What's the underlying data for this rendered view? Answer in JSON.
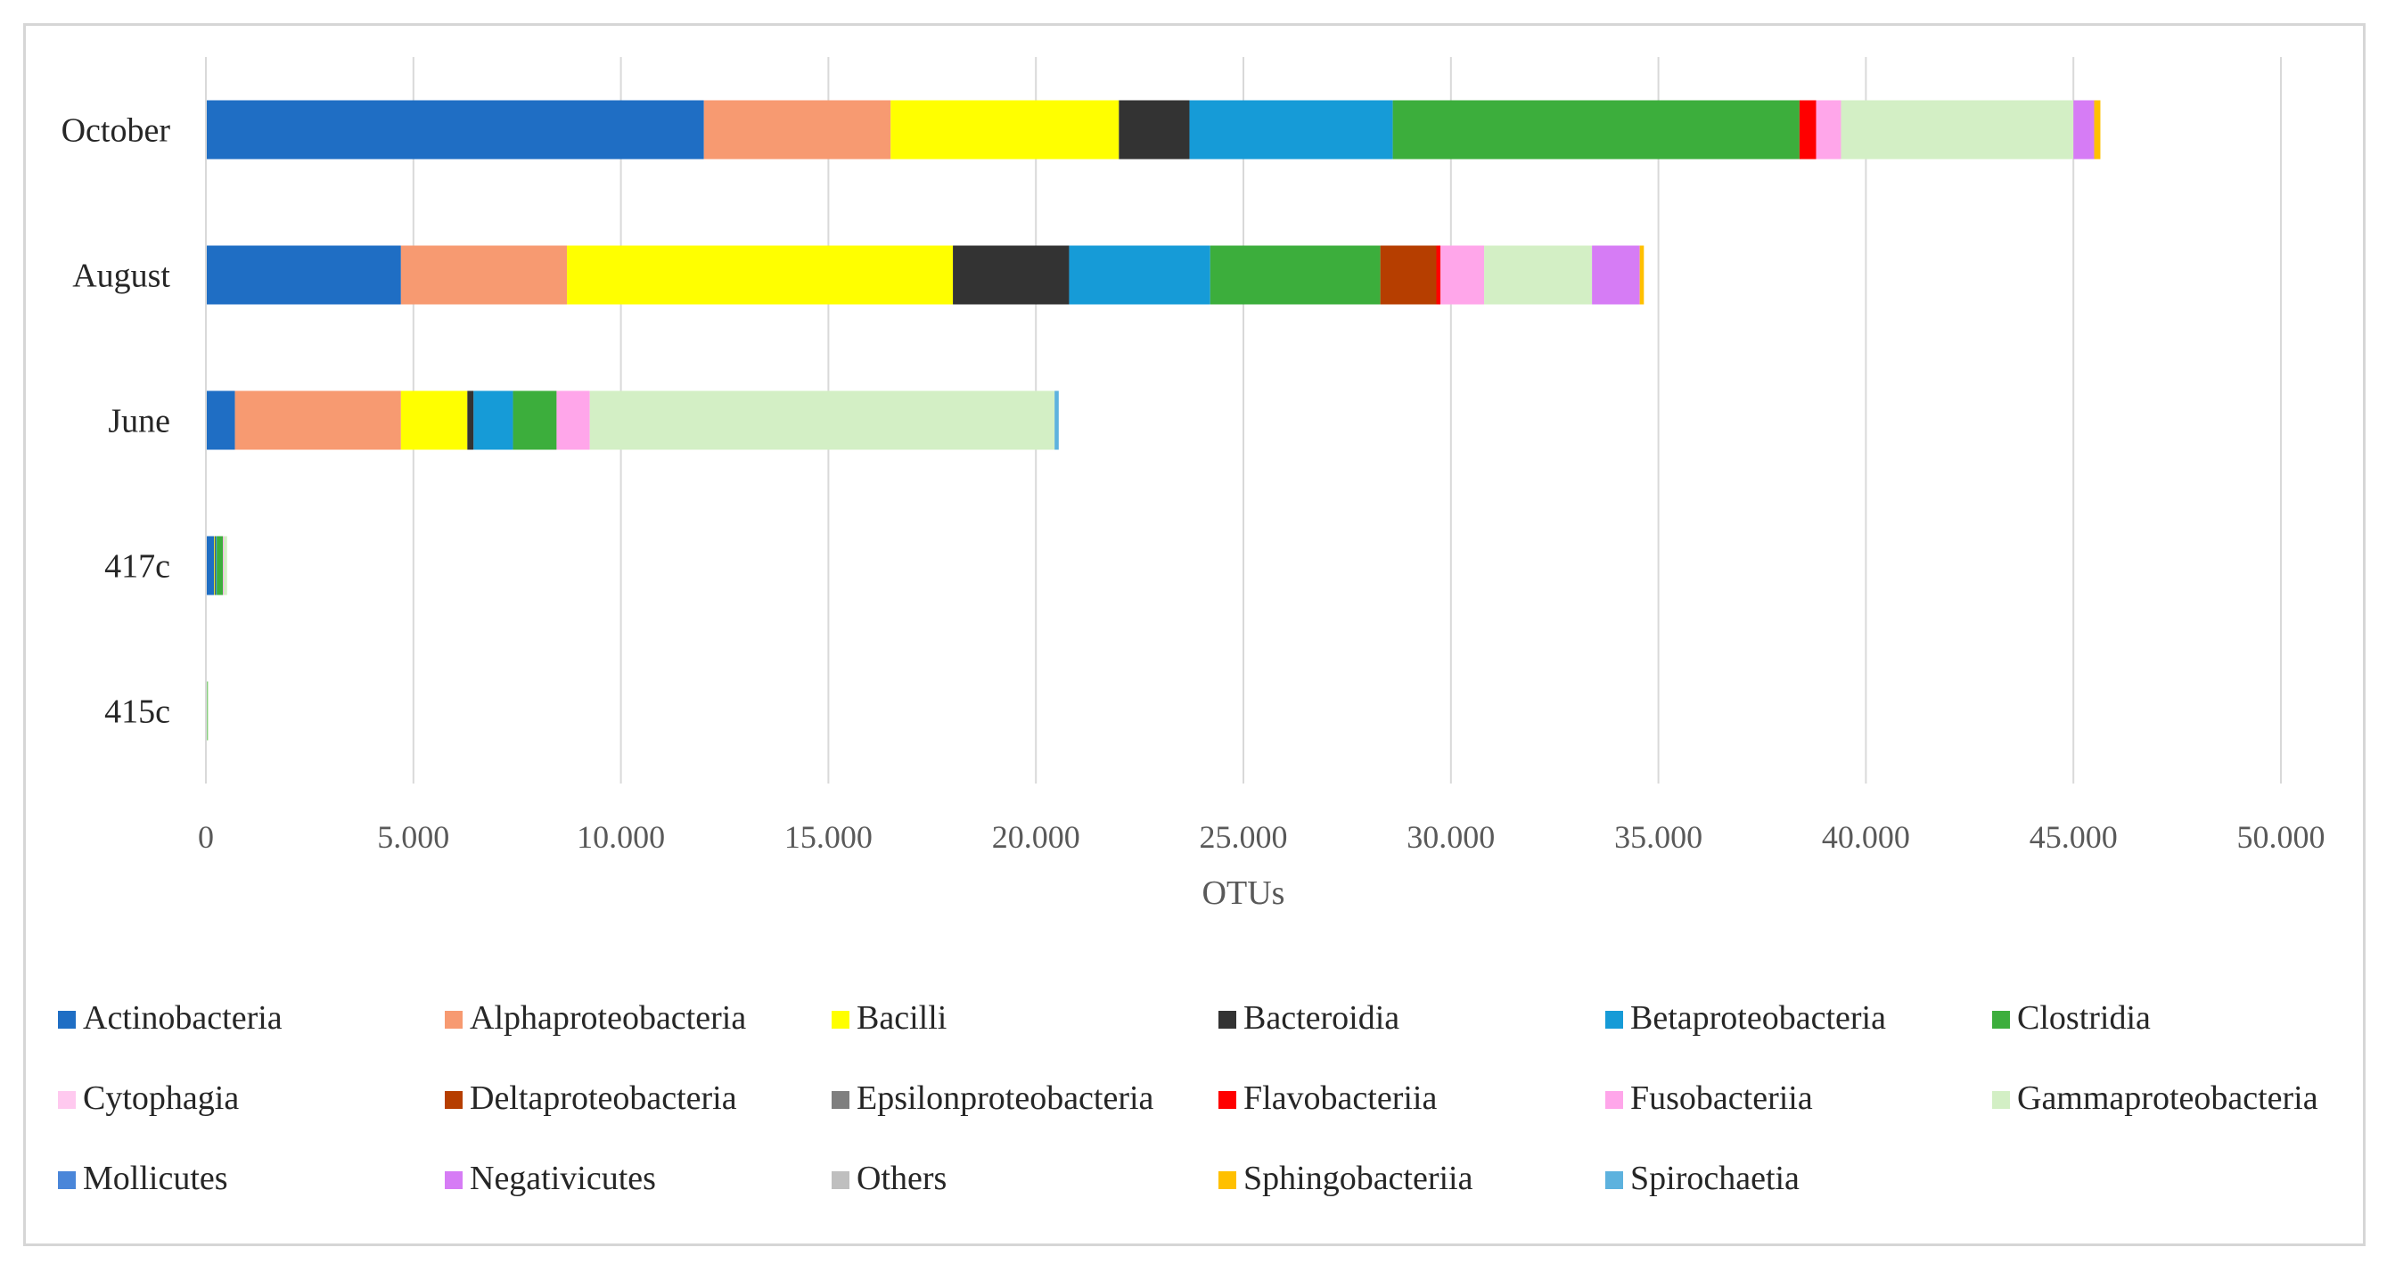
{
  "chart_data": {
    "type": "bar",
    "orientation": "horizontal",
    "stacked": true,
    "title": "",
    "xlabel": "OTUs",
    "ylabel": "",
    "xlim": [
      0,
      50000
    ],
    "x_ticks": [
      0,
      5000,
      10000,
      15000,
      20000,
      25000,
      30000,
      35000,
      40000,
      45000,
      50000
    ],
    "x_tick_labels": [
      "0",
      "5.000",
      "10.000",
      "15.000",
      "20.000",
      "25.000",
      "30.000",
      "35.000",
      "40.000",
      "45.000",
      "50.000"
    ],
    "grid": "vertical",
    "legend_position": "bottom",
    "categories": [
      "October",
      "August",
      "June",
      "417c",
      "415c"
    ],
    "series": [
      {
        "name": "Actinobacteria",
        "color": "#1f6ec4",
        "values": [
          12000,
          4700,
          700,
          200,
          15
        ]
      },
      {
        "name": "Alphaproteobacteria",
        "color": "#f79a71",
        "values": [
          4500,
          4000,
          4000,
          0,
          0
        ]
      },
      {
        "name": "Bacilli",
        "color": "#ffff00",
        "values": [
          5500,
          9300,
          1600,
          20,
          0
        ]
      },
      {
        "name": "Bacteroidia",
        "color": "#333333",
        "values": [
          1700,
          2800,
          150,
          20,
          0
        ]
      },
      {
        "name": "Betaproteobacteria",
        "color": "#169bd7",
        "values": [
          4900,
          3400,
          950,
          20,
          0
        ]
      },
      {
        "name": "Clostridia",
        "color": "#3cae3c",
        "values": [
          9800,
          4100,
          1050,
          150,
          20
        ]
      },
      {
        "name": "Cytophagia",
        "color": "#ffc9ef",
        "values": [
          0,
          0,
          0,
          0,
          0
        ]
      },
      {
        "name": "Deltaproteobacteria",
        "color": "#b63e00",
        "values": [
          0,
          1350,
          0,
          0,
          0
        ]
      },
      {
        "name": "Epsilonproteobacteria",
        "color": "#7f7f7f",
        "values": [
          0,
          0,
          0,
          0,
          0
        ]
      },
      {
        "name": "Flavobacteriia",
        "color": "#ff0000",
        "values": [
          400,
          100,
          0,
          0,
          0
        ]
      },
      {
        "name": "Fusobacteriia",
        "color": "#ffa6ea",
        "values": [
          600,
          1050,
          800,
          20,
          0
        ]
      },
      {
        "name": "Gammaproteobacteria",
        "color": "#d3efc5",
        "values": [
          5600,
          2600,
          11200,
          80,
          30
        ]
      },
      {
        "name": "Mollicutes",
        "color": "#4a86d9",
        "values": [
          0,
          0,
          0,
          0,
          0
        ]
      },
      {
        "name": "Negativicutes",
        "color": "#d67cf5",
        "values": [
          500,
          1150,
          0,
          0,
          0
        ]
      },
      {
        "name": "Others",
        "color": "#bfbfbf",
        "values": [
          0,
          0,
          0,
          0,
          0
        ]
      },
      {
        "name": "Sphingobacteriia",
        "color": "#ffc000",
        "values": [
          150,
          100,
          0,
          0,
          0
        ]
      },
      {
        "name": "Spirochaetia",
        "color": "#5db2de",
        "values": [
          0,
          0,
          100,
          0,
          0
        ]
      }
    ]
  }
}
